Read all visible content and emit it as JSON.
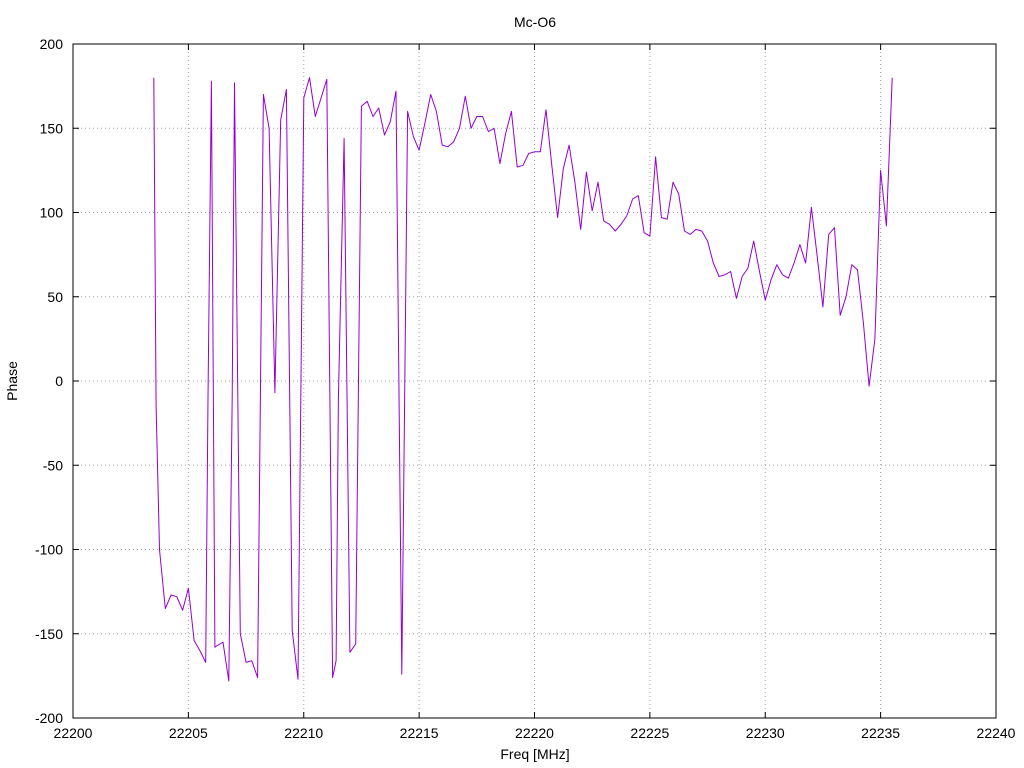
{
  "chart_data": {
    "type": "line",
    "title": "Mc-O6",
    "xlabel": "Freq [MHz]",
    "ylabel": "Phase",
    "xlim": [
      22200,
      22240
    ],
    "ylim": [
      -200,
      200
    ],
    "xticks": [
      22200,
      22205,
      22210,
      22215,
      22220,
      22225,
      22230,
      22235,
      22240
    ],
    "yticks": [
      -200,
      -150,
      -100,
      -50,
      0,
      50,
      100,
      150,
      200
    ],
    "grid": true,
    "line_color": "#9400d3",
    "series": [
      {
        "x": [
          22203.5,
          22203.6,
          22203.75,
          22204.0,
          22204.25,
          22204.5,
          22204.75,
          22205.0,
          22205.25,
          22205.5,
          22205.75,
          22205.85,
          22206.0,
          22206.15,
          22206.25,
          22206.5,
          22206.75,
          22206.9,
          22207.0,
          22207.25,
          22207.5,
          22207.75,
          22208.0,
          22208.25,
          22208.5,
          22208.75,
          22209.0,
          22209.25,
          22209.5,
          22209.75,
          22210.0,
          22210.25,
          22210.5,
          22210.75,
          22211.0,
          22211.25,
          22211.4,
          22211.5,
          22211.75,
          22212.0,
          22212.25,
          22212.5,
          22212.75,
          22213.0,
          22213.25,
          22213.5,
          22213.75,
          22214.0,
          22214.25,
          22214.5,
          22214.75,
          22215.0,
          22215.25,
          22215.5,
          22215.75,
          22216.0,
          22216.25,
          22216.5,
          22216.75,
          22217.0,
          22217.25,
          22217.5,
          22217.75,
          22218.0,
          22218.25,
          22218.5,
          22218.75,
          22219.0,
          22219.25,
          22219.5,
          22219.75,
          22220.0,
          22220.25,
          22220.5,
          22220.75,
          22221.0,
          22221.25,
          22221.5,
          22221.75,
          22222.0,
          22222.25,
          22222.5,
          22222.75,
          22223.0,
          22223.25,
          22223.5,
          22223.75,
          22224.0,
          22224.25,
          22224.5,
          22224.75,
          22225.0,
          22225.25,
          22225.5,
          22225.75,
          22226.0,
          22226.25,
          22226.5,
          22226.75,
          22227.0,
          22227.25,
          22227.5,
          22227.75,
          22228.0,
          22228.25,
          22228.5,
          22228.75,
          22229.0,
          22229.25,
          22229.5,
          22229.75,
          22230.0,
          22230.25,
          22230.5,
          22230.75,
          22231.0,
          22231.25,
          22231.5,
          22231.75,
          22232.0,
          22232.25,
          22232.5,
          22232.75,
          22233.0,
          22233.25,
          22233.5,
          22233.75,
          22234.0,
          22234.25,
          22234.5,
          22234.75,
          22235.0,
          22235.25,
          22235.5
        ],
        "y": [
          180,
          -15,
          -100,
          -135,
          -127,
          -128,
          -136,
          -123,
          -154,
          -160,
          -167,
          -10,
          178,
          -158,
          -157,
          -155,
          -178,
          -10,
          177,
          -150,
          -167,
          -166,
          -176,
          170,
          150,
          -7,
          155,
          173,
          -148,
          -177,
          168,
          180,
          157,
          168,
          179,
          -176,
          -166,
          -10,
          144,
          -161,
          -156,
          163,
          166,
          157,
          162,
          146,
          154,
          172,
          -174,
          160,
          145,
          137,
          153,
          170,
          160,
          140,
          139,
          142,
          150,
          169,
          150,
          157,
          157,
          148,
          150,
          129,
          147,
          160,
          127,
          128,
          135,
          136,
          136,
          161,
          128,
          97,
          126,
          140,
          118,
          90,
          124,
          101,
          118,
          95,
          93,
          89,
          93,
          98,
          108,
          110,
          88,
          86,
          133,
          97,
          96,
          118,
          111,
          89,
          87,
          90,
          89,
          83,
          70,
          62,
          63,
          65,
          49,
          62,
          67,
          83,
          65,
          48,
          60,
          69,
          63,
          61,
          70,
          81,
          70,
          103,
          74,
          44,
          87,
          91,
          39,
          50,
          69,
          66,
          35,
          -3,
          25,
          125,
          92,
          180
        ]
      }
    ]
  }
}
